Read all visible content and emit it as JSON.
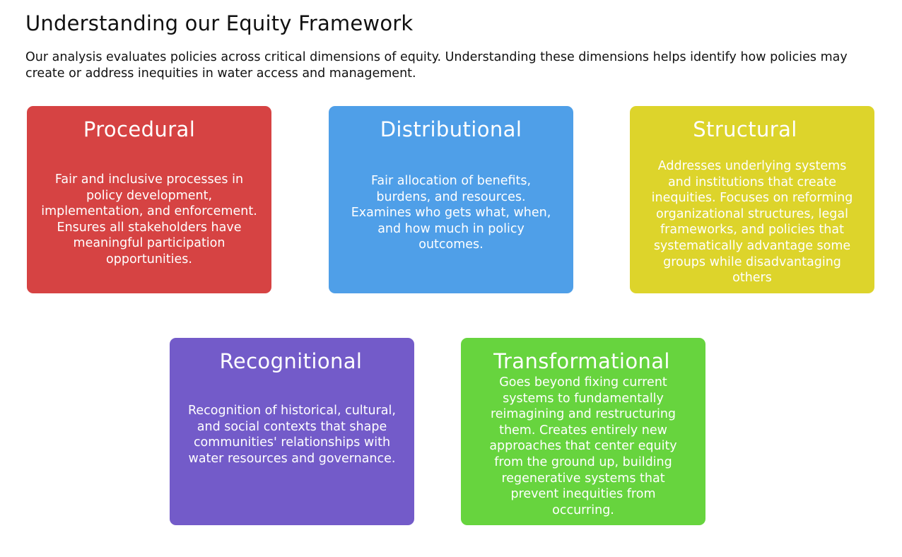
{
  "page": {
    "title": "Understanding our Equity Framework",
    "intro": "Our analysis evaluates policies across critical dimensions of equity. Understanding these dimensions helps identify how policies may create or address inequities in water access and management."
  },
  "cards": [
    {
      "id": "procedural",
      "title": "Procedural",
      "description": "Fair and inclusive processes in policy development, implementation, and enforcement. Ensures all stakeholders have meaningful participation opportunities.",
      "color": "#d64343"
    },
    {
      "id": "distributional",
      "title": "Distributional",
      "description": "Fair allocation of benefits, burdens, and resources. Examines who gets what, when, and how much in policy outcomes.",
      "color": "#4f9fe8"
    },
    {
      "id": "structural",
      "title": "Structural",
      "description": "Addresses underlying systems and institutions that create inequities. Focuses on reforming organizational structures, legal frameworks, and policies that systematically advantage some groups while disadvantaging others",
      "color": "#ddd42b"
    },
    {
      "id": "recognitional",
      "title": "Recognitional",
      "description": "Recognition of historical, cultural, and social contexts that shape communities' relationships with water resources and governance.",
      "color": "#735bc9"
    },
    {
      "id": "transformational",
      "title": "Transformational",
      "description": "Goes beyond fixing current systems to fundamentally reimagining and restructuring them. Creates entirely new approaches that center equity from the ground up, building regenerative systems that prevent inequities from occurring.",
      "color": "#67d43e"
    }
  ]
}
